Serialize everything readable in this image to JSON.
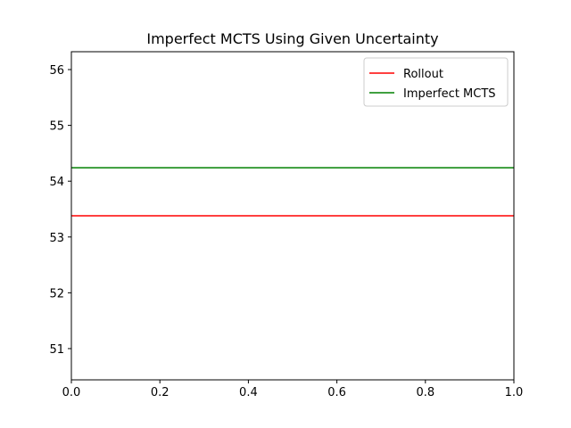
{
  "chart_data": {
    "type": "line",
    "title": "Imperfect MCTS Using Given Uncertainty",
    "xlabel": "",
    "ylabel": "",
    "xlim": [
      0.0,
      1.0
    ],
    "ylim": [
      50.44,
      56.32
    ],
    "xticks": [
      0.0,
      0.2,
      0.4,
      0.6,
      0.8,
      1.0
    ],
    "xtick_labels": [
      "0.0",
      "0.2",
      "0.4",
      "0.6",
      "0.8",
      "1.0"
    ],
    "yticks": [
      51,
      52,
      53,
      54,
      55,
      56
    ],
    "ytick_labels": [
      "51",
      "52",
      "53",
      "54",
      "55",
      "56"
    ],
    "grid": false,
    "legend_position": "upper right",
    "series": [
      {
        "name": "Rollout",
        "color": "#ff0000",
        "x": [
          0.0,
          1.0
        ],
        "y": [
          53.38,
          53.38
        ]
      },
      {
        "name": "Imperfect MCTS",
        "color": "#008000",
        "x": [
          0.0,
          1.0
        ],
        "y": [
          54.24,
          54.24
        ]
      }
    ]
  }
}
